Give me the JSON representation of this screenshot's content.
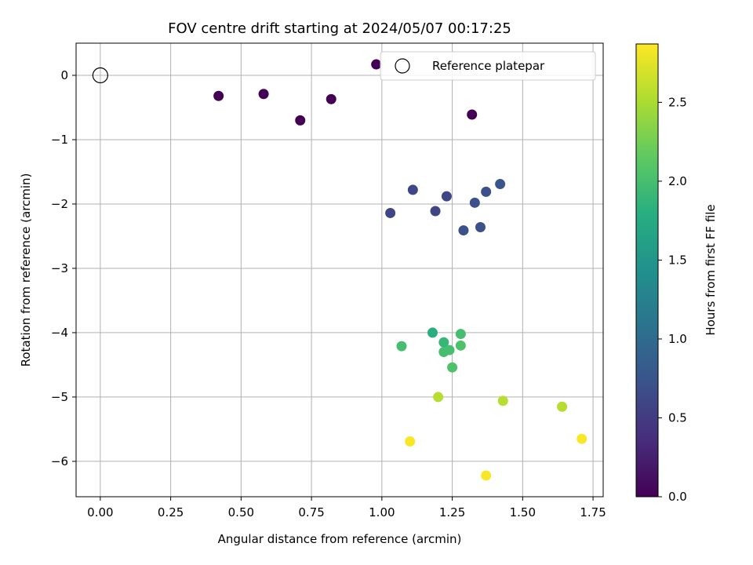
{
  "chart_data": {
    "type": "scatter",
    "title": "FOV centre drift starting at 2024/05/07 00:17:25",
    "xlabel": "Angular distance from reference (arcmin)",
    "ylabel": "Rotation from reference (arcmin)",
    "xlim": [
      -0.086,
      1.786
    ],
    "ylim": [
      -6.55,
      0.5
    ],
    "xticks": [
      0.0,
      0.25,
      0.5,
      0.75,
      1.0,
      1.25,
      1.5,
      1.75
    ],
    "xtick_labels": [
      "0.00",
      "0.25",
      "0.50",
      "0.75",
      "1.00",
      "1.25",
      "1.50",
      "1.75"
    ],
    "yticks": [
      0,
      -1,
      -2,
      -3,
      -4,
      -5,
      -6
    ],
    "ytick_labels": [
      "0",
      "−1",
      "−2",
      "−3",
      "−4",
      "−5",
      "−6"
    ],
    "grid": true,
    "legend": {
      "location": "top-right",
      "entries": [
        "Reference platepar"
      ]
    },
    "reference_point": {
      "x": 0.0,
      "y": 0.0,
      "label": "Reference platepar"
    },
    "colorbar": {
      "label": "Hours from first FF file",
      "colormap": "viridis",
      "range": [
        0.0,
        2.87
      ],
      "ticks": [
        0.0,
        0.5,
        1.0,
        1.5,
        2.0,
        2.5
      ],
      "tick_labels": [
        "0.0",
        "0.5",
        "1.0",
        "1.5",
        "2.0",
        "2.5"
      ]
    },
    "points": [
      {
        "x": 0.42,
        "y": -0.32,
        "hours": 0.0
      },
      {
        "x": 0.58,
        "y": -0.29,
        "hours": 0.0
      },
      {
        "x": 0.71,
        "y": -0.7,
        "hours": 0.0
      },
      {
        "x": 0.82,
        "y": -0.37,
        "hours": 0.0
      },
      {
        "x": 0.98,
        "y": 0.17,
        "hours": 0.0
      },
      {
        "x": 1.32,
        "y": -0.61,
        "hours": 0.0
      },
      {
        "x": 1.03,
        "y": -2.14,
        "hours": 0.6
      },
      {
        "x": 1.11,
        "y": -1.78,
        "hours": 0.6
      },
      {
        "x": 1.19,
        "y": -2.11,
        "hours": 0.6
      },
      {
        "x": 1.23,
        "y": -1.88,
        "hours": 0.6
      },
      {
        "x": 1.29,
        "y": -2.41,
        "hours": 0.7
      },
      {
        "x": 1.33,
        "y": -1.98,
        "hours": 0.7
      },
      {
        "x": 1.35,
        "y": -2.36,
        "hours": 0.7
      },
      {
        "x": 1.37,
        "y": -1.81,
        "hours": 0.7
      },
      {
        "x": 1.42,
        "y": -1.69,
        "hours": 0.75
      },
      {
        "x": 1.07,
        "y": -4.21,
        "hours": 2.0
      },
      {
        "x": 1.18,
        "y": -4.0,
        "hours": 1.8
      },
      {
        "x": 1.22,
        "y": -4.15,
        "hours": 1.9
      },
      {
        "x": 1.22,
        "y": -4.3,
        "hours": 2.0
      },
      {
        "x": 1.24,
        "y": -4.27,
        "hours": 2.0
      },
      {
        "x": 1.25,
        "y": -4.54,
        "hours": 2.05
      },
      {
        "x": 1.28,
        "y": -4.02,
        "hours": 2.0
      },
      {
        "x": 1.28,
        "y": -4.2,
        "hours": 2.05
      },
      {
        "x": 1.2,
        "y": -5.0,
        "hours": 2.55
      },
      {
        "x": 1.43,
        "y": -5.06,
        "hours": 2.55
      },
      {
        "x": 1.64,
        "y": -5.15,
        "hours": 2.55
      },
      {
        "x": 1.1,
        "y": -5.69,
        "hours": 2.85
      },
      {
        "x": 1.37,
        "y": -6.22,
        "hours": 2.85
      },
      {
        "x": 1.71,
        "y": -5.65,
        "hours": 2.85
      }
    ]
  }
}
